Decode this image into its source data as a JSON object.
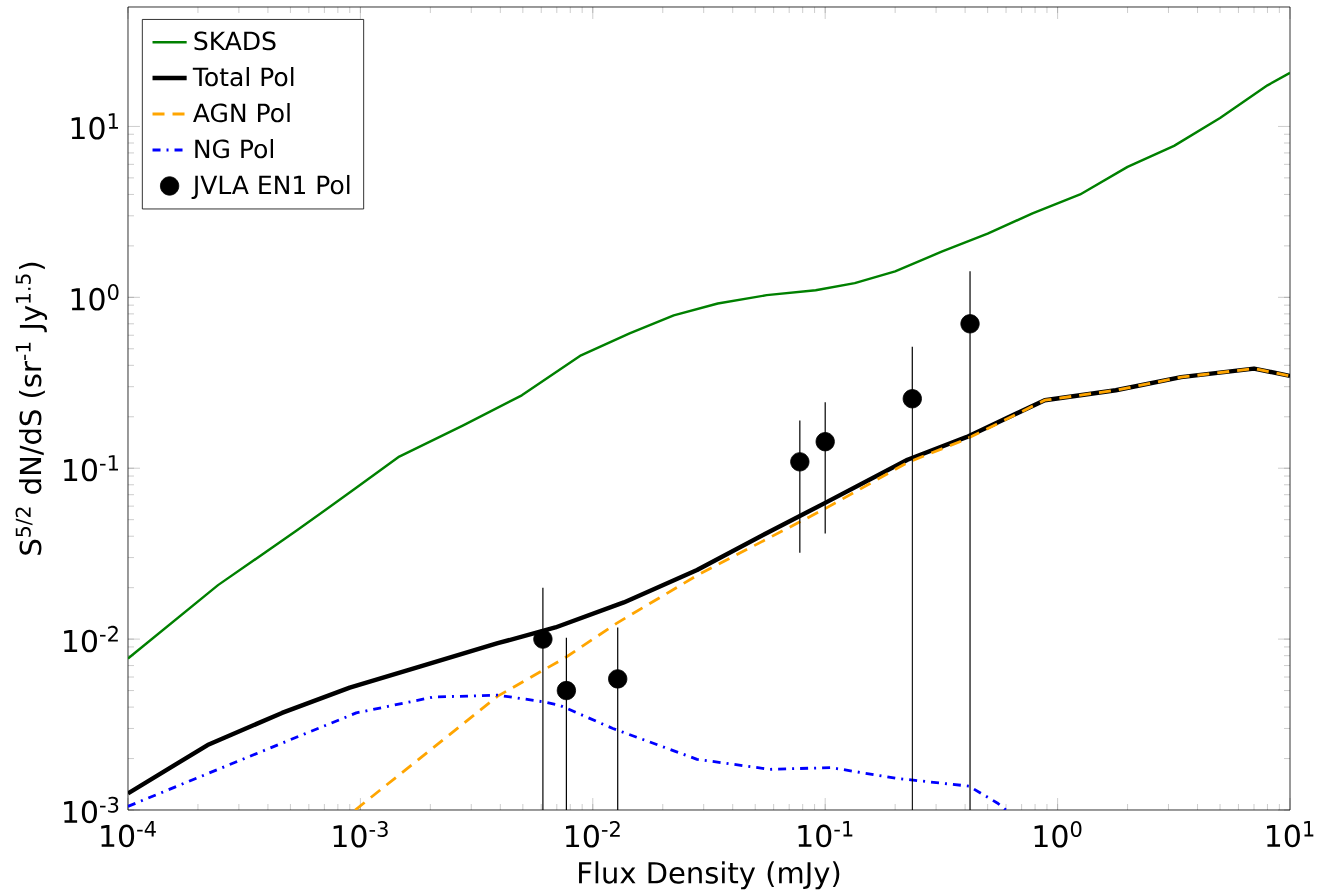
{
  "chart_data": {
    "type": "line",
    "xlabel": "Flux Density (mJy)",
    "ylabel": "S$^{5/2}$ dN/dS (sr$^{-1}$ Jy$^{1.5}$)",
    "log": "xy",
    "legend": "top left",
    "xlim": [
      0.0001,
      10
    ],
    "ylim": [
      0.001,
      50
    ],
    "xticks": [
      {
        "value": 0.0001,
        "label": "10$^{-4}$"
      },
      {
        "value": 0.001,
        "label": "10$^{-3}$"
      },
      {
        "value": 0.01,
        "label": "10$^{-2}$"
      },
      {
        "value": 0.1,
        "label": "10$^{-1}$"
      },
      {
        "value": 1,
        "label": "10$^{0}$"
      },
      {
        "value": 10,
        "label": "10$^{1}$"
      }
    ],
    "yticks": [
      {
        "value": 0.001,
        "label": "10$^{-3}$"
      },
      {
        "value": 0.01,
        "label": "10$^{-2}$"
      },
      {
        "value": 0.1,
        "label": "10$^{-1}$"
      },
      {
        "value": 1,
        "label": "10$^{0}$"
      },
      {
        "value": 10,
        "label": "10$^{1}$"
      }
    ],
    "series": [
      {
        "name": "SKADS",
        "color": "#008000",
        "line_style": "solid",
        "x": [
          0.0001,
          0.000244,
          0.00053,
          0.00095,
          0.00147,
          0.00277,
          0.00495,
          0.0089,
          0.0144,
          0.0223,
          0.0345,
          0.056,
          0.091,
          0.134,
          0.2,
          0.317,
          0.5,
          0.78,
          1.25,
          2.0,
          3.17,
          5.0,
          8.0,
          10
        ],
        "values": [
          0.0077,
          0.0207,
          0.043,
          0.076,
          0.117,
          0.178,
          0.267,
          0.458,
          0.615,
          0.785,
          0.92,
          1.03,
          1.1,
          1.21,
          1.42,
          1.85,
          2.36,
          3.1,
          4.0,
          5.8,
          7.7,
          11.2,
          17.4,
          20.6
        ]
      },
      {
        "name": "Total Pol",
        "color": "#000000",
        "line_style": "solid",
        "x": [
          0.0001,
          0.00022,
          0.00046,
          0.0009,
          0.0018,
          0.0039,
          0.0069,
          0.0136,
          0.0281,
          0.0556,
          0.1,
          0.226,
          0.405,
          0.88,
          1.78,
          3.4,
          7.0,
          10
        ],
        "values": [
          0.00125,
          0.0024,
          0.0037,
          0.0052,
          0.0069,
          0.00946,
          0.0117,
          0.0164,
          0.0254,
          0.0415,
          0.0627,
          0.112,
          0.152,
          0.25,
          0.286,
          0.341,
          0.383,
          0.347
        ]
      },
      {
        "name": "AGN Pol",
        "color": "#ffa500",
        "line_style": "dashed",
        "x": [
          0.00095,
          0.0039,
          0.0076,
          0.0127,
          0.0281,
          0.1,
          0.226,
          0.405,
          0.88,
          1.78,
          3.4,
          7.0,
          10
        ],
        "values": [
          0.001,
          0.00464,
          0.00778,
          0.0124,
          0.0236,
          0.058,
          0.108,
          0.148,
          0.25,
          0.286,
          0.341,
          0.383,
          0.347
        ]
      },
      {
        "name": "NG Pol",
        "color": "#0000ff",
        "line_style": "dashdot",
        "x": [
          0.0001,
          0.00027,
          0.00058,
          0.00096,
          0.00206,
          0.0039,
          0.0061,
          0.0072,
          0.0122,
          0.0281,
          0.0577,
          0.106,
          0.204,
          0.415,
          0.55,
          0.6
        ],
        "values": [
          0.00105,
          0.00183,
          0.0028,
          0.0037,
          0.00458,
          0.0047,
          0.0043,
          0.0041,
          0.003,
          0.00198,
          0.00173,
          0.00177,
          0.00153,
          0.00138,
          0.0011,
          0.001
        ]
      },
      {
        "name": "JVLA EN1 Pol",
        "type": "scatter",
        "color": "#000000",
        "x": [
          0.0061,
          0.0077,
          0.0128,
          0.0778,
          0.1,
          0.237,
          0.42
        ],
        "values": [
          0.01,
          0.005,
          0.00585,
          0.109,
          0.143,
          0.255,
          0.7
        ],
        "errors": [
          [
            0.001,
            0.02
          ],
          [
            0.001,
            0.0102
          ],
          [
            0.001,
            0.0117
          ],
          [
            0.032,
            0.19
          ],
          [
            0.0415,
            0.243
          ],
          [
            0.001,
            0.514
          ],
          [
            0.001,
            1.42
          ]
        ]
      }
    ]
  }
}
